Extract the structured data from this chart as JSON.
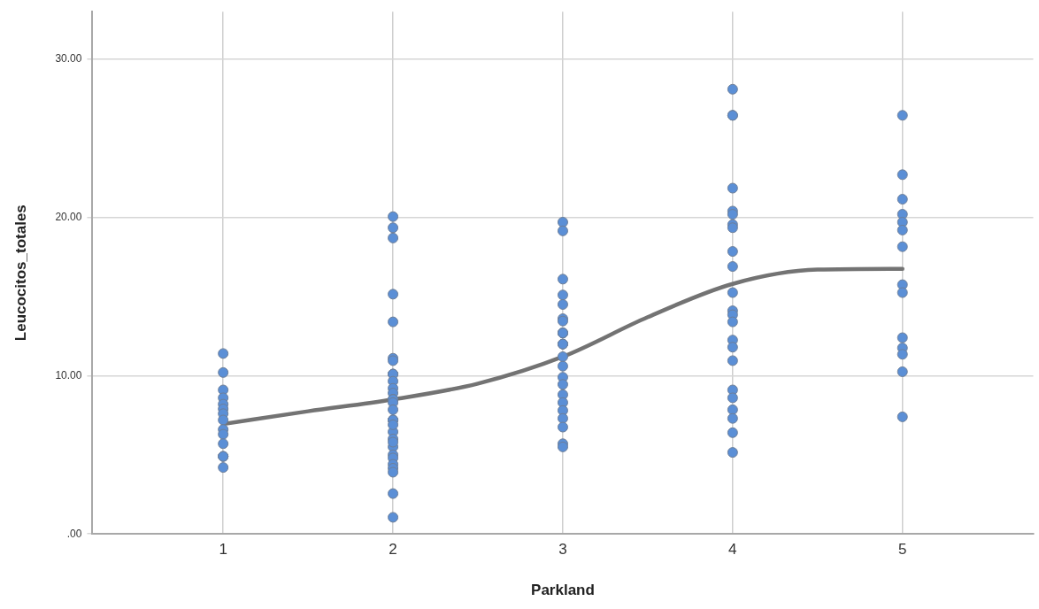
{
  "chart_data": {
    "type": "scatter",
    "xlabel": "Parkland",
    "ylabel": "Leucocitos_totales",
    "xlim": [
      0.23,
      5.77
    ],
    "xticks": [
      1,
      2,
      3,
      4,
      5
    ],
    "ylim": [
      0,
      33
    ],
    "yticks": [
      {
        "value": 0,
        "label": ".00"
      },
      {
        "value": 10,
        "label": "10.00"
      },
      {
        "value": 20,
        "label": "20.00"
      },
      {
        "value": 30,
        "label": "30.00"
      }
    ],
    "grid": true,
    "legend": false,
    "marker": "circle",
    "series": [
      {
        "type": "line",
        "color": "#737373",
        "line_style": "solid",
        "marker": "none",
        "x": [
          1,
          1.5,
          2,
          2.5,
          3,
          3.5,
          4,
          4.5,
          5
        ],
        "values": [
          6.95,
          7.75,
          8.5,
          9.5,
          11.2,
          13.7,
          15.8,
          16.7,
          16.75
        ]
      },
      {
        "color": "#5b8fd6",
        "x": [
          1,
          1,
          1,
          1,
          1,
          1,
          1,
          1,
          1,
          1,
          1,
          1,
          1,
          1,
          1,
          2,
          2,
          2,
          2,
          2,
          2,
          2,
          2,
          2,
          2,
          2,
          2,
          2,
          2,
          2,
          2,
          2,
          2,
          2,
          2,
          2,
          2,
          2,
          2,
          2,
          2,
          2,
          2,
          2,
          2,
          2,
          2,
          2,
          3,
          3,
          3,
          3,
          3,
          3,
          3,
          3,
          3,
          3,
          3,
          3,
          3,
          3,
          3,
          3,
          3,
          3,
          3,
          3,
          3,
          3,
          3,
          3,
          4,
          4,
          4,
          4,
          4,
          4,
          4,
          4,
          4,
          4,
          4,
          4,
          4,
          4,
          4,
          4,
          4,
          4,
          4,
          4,
          4,
          4,
          4,
          5,
          5,
          5,
          5,
          5,
          5,
          5,
          5,
          5,
          5,
          5,
          5,
          5,
          5
        ],
        "values": [
          11.4,
          10.2,
          9.1,
          8.6,
          8.2,
          7.9,
          7.6,
          7.2,
          6.6,
          6.3,
          5.7,
          4.9,
          4.9,
          4.9,
          4.2,
          20.05,
          19.35,
          18.7,
          15.15,
          13.4,
          11.1,
          10.95,
          10.1,
          10.1,
          10.1,
          9.65,
          9.2,
          8.9,
          8.5,
          8.5,
          8.5,
          8.3,
          7.85,
          7.2,
          7.2,
          7.2,
          6.45,
          5.5,
          5.0,
          4.8,
          4.4,
          4.15,
          2.55,
          1.05,
          6.0,
          6.9,
          5.8,
          3.9,
          19.7,
          19.15,
          16.1,
          15.1,
          14.5,
          13.6,
          13.45,
          12.7,
          12.7,
          12.7,
          12.0,
          12.0,
          12.0,
          11.2,
          10.6,
          9.9,
          9.45,
          8.8,
          8.3,
          7.8,
          7.3,
          6.75,
          5.7,
          5.5,
          28.1,
          26.45,
          26.45,
          21.85,
          20.4,
          20.2,
          19.55,
          19.35,
          17.85,
          16.9,
          15.25,
          14.1,
          13.85,
          13.4,
          12.25,
          11.8,
          10.95,
          9.1,
          8.6,
          7.85,
          7.3,
          6.4,
          5.15,
          26.45,
          22.7,
          21.15,
          20.2,
          19.7,
          19.2,
          18.15,
          15.75,
          15.25,
          12.4,
          11.75,
          11.35,
          10.25,
          7.4
        ]
      }
    ]
  }
}
